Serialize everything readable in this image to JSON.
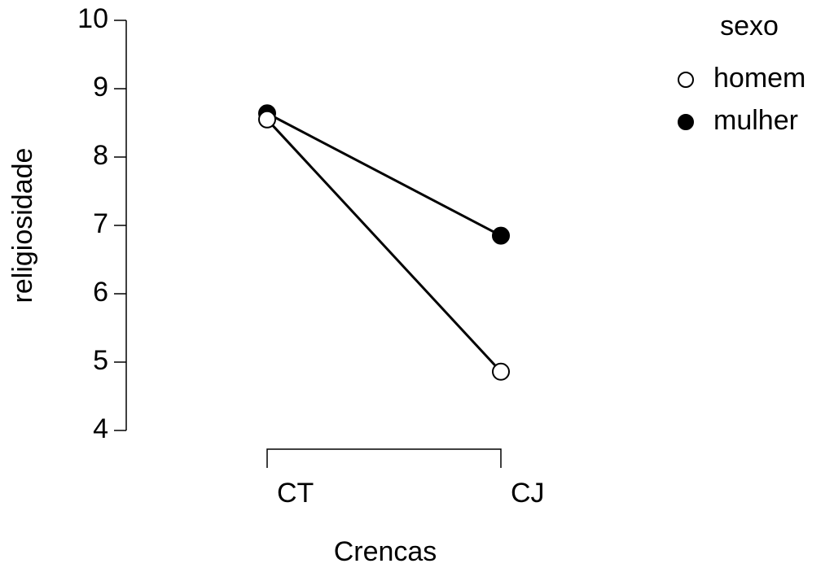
{
  "chart_data": {
    "type": "line",
    "x_label": "Crencas",
    "y_label": "religiosidade",
    "categories": [
      "CT",
      "CJ"
    ],
    "legend_title": "sexo",
    "series": [
      {
        "name": "homem",
        "color": "#ffffff",
        "values": [
          8.55,
          4.86
        ]
      },
      {
        "name": "mulher",
        "color": "#000000",
        "values": [
          8.64,
          6.85
        ]
      }
    ],
    "ylim": [
      4,
      10
    ],
    "yticks": [
      4,
      5,
      6,
      7,
      8,
      9,
      10
    ],
    "legend": "top-right"
  }
}
